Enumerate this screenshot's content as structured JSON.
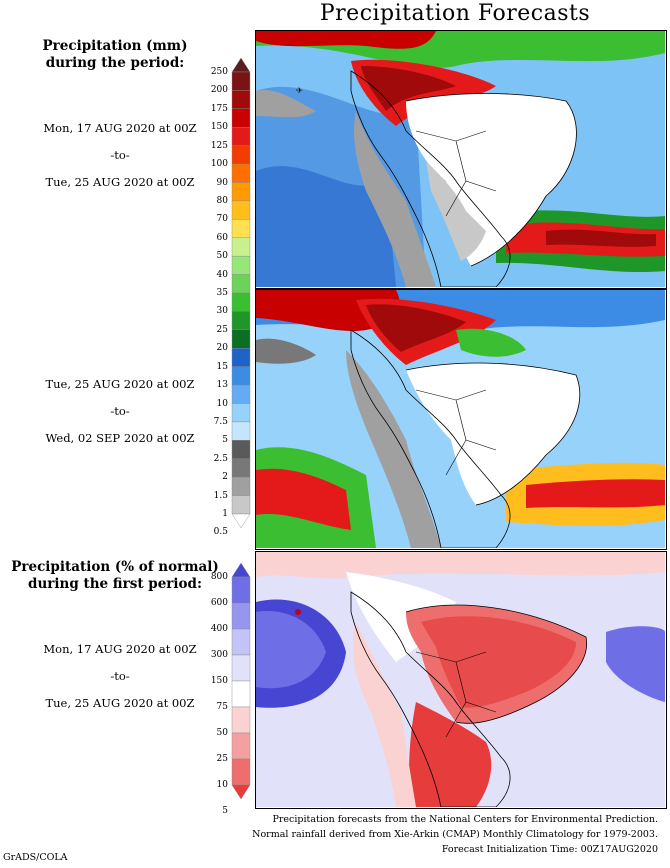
{
  "title": "Precipitation Forecasts",
  "panels": [
    {
      "heading": [
        "Precipitation (mm)",
        "during the period:"
      ],
      "start": "Mon, 17 AUG 2020 at 00Z",
      "sep": "-to-",
      "end": "Tue, 25 AUG 2020 at 00Z"
    },
    {
      "start": "Tue, 25 AUG 2020 at 00Z",
      "sep": "-to-",
      "end": "Wed, 02 SEP 2020 at 00Z"
    },
    {
      "heading": [
        "Precipitation (% of normal)",
        "during the first period:"
      ],
      "start": "Mon, 17 AUG 2020 at 00Z",
      "sep": "-to-",
      "end": "Tue, 25 AUG 2020 at 00Z"
    }
  ],
  "precip_scale": {
    "labels": [
      "250",
      "200",
      "175",
      "150",
      "125",
      "100",
      "90",
      "80",
      "70",
      "60",
      "50",
      "40",
      "35",
      "30",
      "25",
      "20",
      "15",
      "13",
      "10",
      "7.5",
      "5",
      "2.5",
      "2",
      "1.5",
      "1",
      "0.5"
    ],
    "colors": [
      "#5a1e1e",
      "#7a1414",
      "#a00a0a",
      "#c80000",
      "#e41a1a",
      "#f23c00",
      "#ff6e00",
      "#ff9a00",
      "#ffbe1e",
      "#ffe050",
      "#c8f08c",
      "#96e678",
      "#6ed25a",
      "#3cbe32",
      "#1e9628",
      "#0a6e23",
      "#1e64c8",
      "#3c8ce6",
      "#64aaf5",
      "#96d2fa",
      "#c3e6fc",
      "#5a5a5a",
      "#787878",
      "#a0a0a0",
      "#c8c8c8",
      "#ffffff"
    ]
  },
  "anomaly_scale": {
    "labels": [
      "800",
      "600",
      "400",
      "300",
      "150",
      "75",
      "50",
      "25",
      "10",
      "5"
    ],
    "colors": [
      "#4646d2",
      "#6e6ee6",
      "#9696f0",
      "#c3c3f5",
      "#e1e1fa",
      "#ffffff",
      "#fad2d2",
      "#f5a0a0",
      "#ee6e6e",
      "#e63c3c"
    ]
  },
  "footer": [
    "Precipitation forecasts from the National Centers for Environmental Prediction.",
    "Normal rainfall derived from Xie-Arkin (CMAP) Monthly Climatology for 1979-2003.",
    "Forecast Initialization Time: 00Z17AUG2020"
  ],
  "credit": "GrADS/COLA"
}
